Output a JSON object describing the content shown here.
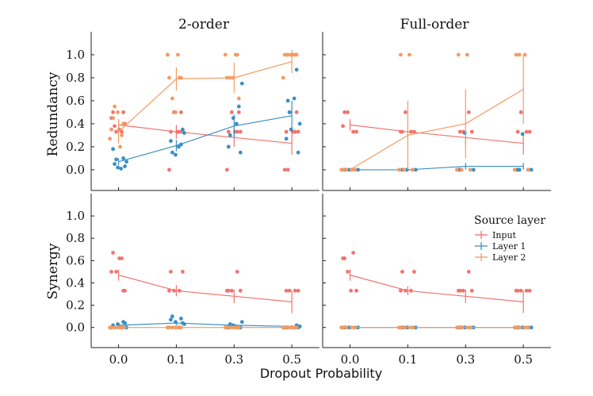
{
  "colors": {
    "input": "#f0746e",
    "layer1": "#3a8fc4",
    "layer2": "#f59a62",
    "axis": "#222222"
  },
  "legend": {
    "title": "Source layer",
    "items": [
      {
        "label": "Input",
        "series": "input"
      },
      {
        "label": "Layer 1",
        "series": "layer1"
      },
      {
        "label": "Layer 2",
        "series": "layer2"
      }
    ]
  },
  "chart_data": {
    "type": "scatter",
    "xlabel": "Dropout Probability",
    "categories": [
      "0.0",
      "0.1",
      "0.3",
      "0.5"
    ],
    "ylim": [
      -0.18,
      1.2
    ],
    "yticks": [
      "0.0",
      "0.2",
      "0.4",
      "0.6",
      "0.8",
      "1.0"
    ],
    "columns": [
      "2-order",
      "Full-order"
    ],
    "rows": [
      "Redundancy",
      "Synergy"
    ],
    "panels": [
      {
        "id": "redundancy-2order",
        "row": "Redundancy",
        "column": "2-order",
        "series": [
          {
            "name": "Input",
            "key": "input",
            "means": [
              0.39,
              0.33,
              0.28,
              0.23
            ],
            "errors": [
              0.05,
              0.06,
              0.08,
              0.1
            ],
            "points": [
              [
                0.5,
                0.33,
                0.33,
                0.4,
                0.45,
                0.35,
                0.5,
                0.38
              ],
              [
                0.33,
                0.33,
                0.5,
                0.33,
                0.0,
                0.33,
                0.5
              ],
              [
                0.33,
                0.33,
                0.5,
                0.33,
                0.0,
                0.33,
                0.5
              ],
              [
                0.33,
                0.33,
                0.5,
                0.33,
                0.0,
                0.33,
                0.5,
                0.0
              ]
            ]
          },
          {
            "name": "Layer 1",
            "key": "layer1",
            "means": [
              0.07,
              0.21,
              0.38,
              0.47
            ],
            "errors": [
              0.03,
              0.05,
              0.1,
              0.13
            ],
            "points": [
              [
                0.05,
                0.1,
                0.02,
                0.07,
                0.18,
                0.01,
                0.03,
                0.09
              ],
              [
                0.15,
                0.22,
                0.13,
                0.32,
                0.25,
                0.2,
                0.35
              ],
              [
                0.3,
                0.55,
                0.45,
                0.75,
                0.2,
                0.4,
                0.15
              ],
              [
                0.6,
                0.87,
                0.35,
                0.4,
                0.27,
                0.62,
                0.15,
                0.5
              ]
            ]
          },
          {
            "name": "Layer 2",
            "key": "layer2",
            "means": [
              0.33,
              0.79,
              0.8,
              0.94
            ],
            "errors": [
              0.1,
              0.1,
              0.13,
              0.1
            ],
            "points": [
              [
                0.35,
                0.2,
                0.55,
                0.4,
                0.27,
                0.5,
                0.3,
                0.45
              ],
              [
                0.8,
                1.0,
                0.62,
                0.8,
                1.0,
                0.5,
                0.8
              ],
              [
                0.8,
                1.0,
                0.8,
                0.62,
                1.0,
                0.8,
                1.0
              ],
              [
                1.0,
                1.0,
                1.0,
                1.0,
                0.8,
                1.0,
                1.0,
                1.0
              ]
            ]
          }
        ]
      },
      {
        "id": "redundancy-full",
        "row": "Redundancy",
        "column": "Full-order",
        "series": [
          {
            "name": "Input",
            "key": "input",
            "means": [
              0.39,
              0.33,
              0.28,
              0.23
            ],
            "errors": [
              0.05,
              0.05,
              0.07,
              0.1
            ],
            "points": [
              [
                0.5,
                0.33,
                0.5,
                0.33,
                0.38
              ],
              [
                0.33,
                0.33,
                0.5,
                0.33,
                0.33
              ],
              [
                0.33,
                0.5,
                0.33,
                0.33,
                0.0
              ],
              [
                0.33,
                0.33,
                0.5,
                0.33,
                0.0
              ]
            ]
          },
          {
            "name": "Layer 1",
            "key": "layer1",
            "means": [
              0.0,
              0.0,
              0.03,
              0.03
            ],
            "errors": [
              0.01,
              0.01,
              0.03,
              0.03
            ],
            "points": [
              [
                0.0,
                0.0,
                0.0,
                0.0,
                0.0
              ],
              [
                0.0,
                0.0,
                0.0,
                0.0,
                0.0
              ],
              [
                0.0,
                0.0,
                0.32,
                0.0,
                0.0
              ],
              [
                0.0,
                0.0,
                0.31,
                0.0,
                0.0
              ]
            ]
          },
          {
            "name": "Layer 2",
            "key": "layer2",
            "means": [
              0.0,
              0.3,
              0.4,
              0.7
            ],
            "errors": [
              0.01,
              0.3,
              0.3,
              0.3
            ],
            "points": [
              [
                0.0,
                0.0,
                0.0,
                0.0,
                0.0
              ],
              [
                1.0,
                1.0,
                0.0,
                0.0,
                0.0
              ],
              [
                1.0,
                1.0,
                0.0,
                0.0,
                0.0
              ],
              [
                1.0,
                1.0,
                1.0,
                0.0,
                0.0
              ]
            ]
          }
        ]
      },
      {
        "id": "synergy-2order",
        "row": "Synergy",
        "column": "2-order",
        "series": [
          {
            "name": "Input",
            "key": "input",
            "means": [
              0.47,
              0.33,
              0.28,
              0.23
            ],
            "errors": [
              0.05,
              0.05,
              0.06,
              0.1
            ],
            "points": [
              [
                0.67,
                0.62,
                0.5,
                0.33,
                0.5,
                0.62,
                0.33
              ],
              [
                0.5,
                0.33,
                0.33,
                0.5,
                0.33
              ],
              [
                0.33,
                0.5,
                0.33,
                0.33,
                0.33
              ],
              [
                0.33,
                0.33,
                0.33,
                0.33,
                0.0
              ]
            ]
          },
          {
            "name": "Layer 1",
            "key": "layer1",
            "means": [
              0.02,
              0.04,
              0.02,
              0.01
            ],
            "errors": [
              0.01,
              0.02,
              0.01,
              0.01
            ],
            "points": [
              [
                0.0,
                0.05,
                0.03,
                0.0,
                0.02,
                0.0,
                0.04
              ],
              [
                0.1,
                0.08,
                0.05,
                0.03,
                0.07,
                0.0,
                0.04
              ],
              [
                0.03,
                0.0,
                0.02,
                0.05,
                0.0,
                0.01,
                0.0
              ],
              [
                0.0,
                0.02,
                0.0,
                0.01,
                0.0,
                0.0,
                0.0
              ]
            ]
          },
          {
            "name": "Layer 2",
            "key": "layer2",
            "means": [
              0.0,
              0.0,
              0.0,
              0.0
            ],
            "errors": [
              0.0,
              0.0,
              0.0,
              0.0
            ],
            "points": [
              [
                0.0,
                0.0,
                0.0,
                0.0,
                0.0,
                0.0,
                0.0
              ],
              [
                0.0,
                0.0,
                0.0,
                0.0,
                0.0,
                0.0,
                0.0
              ],
              [
                0.0,
                0.0,
                0.0,
                0.0,
                0.0,
                0.0,
                0.0
              ],
              [
                0.0,
                0.0,
                0.0,
                0.0,
                0.0,
                0.0,
                0.0
              ]
            ]
          }
        ]
      },
      {
        "id": "synergy-full",
        "row": "Synergy",
        "column": "Full-order",
        "series": [
          {
            "name": "Input",
            "key": "input",
            "means": [
              0.47,
              0.33,
              0.28,
              0.23
            ],
            "errors": [
              0.05,
              0.04,
              0.06,
              0.1
            ],
            "points": [
              [
                0.62,
                0.67,
                0.5,
                0.33,
                0.62,
                0.33
              ],
              [
                0.5,
                0.33,
                0.33,
                0.5,
                0.33
              ],
              [
                0.33,
                0.5,
                0.33,
                0.33,
                0.33
              ],
              [
                0.33,
                0.33,
                0.33,
                0.33,
                0.33
              ]
            ]
          },
          {
            "name": "Layer 1",
            "key": "layer1",
            "means": [
              0.0,
              0.0,
              0.0,
              0.0
            ],
            "errors": [
              0.0,
              0.0,
              0.0,
              0.0
            ],
            "points": [
              [
                0.0,
                0.0,
                0.0,
                0.0,
                0.0
              ],
              [
                0.0,
                0.0,
                0.0,
                0.0,
                0.0
              ],
              [
                0.0,
                0.0,
                0.0,
                0.0,
                0.0
              ],
              [
                0.0,
                0.0,
                0.0,
                0.0,
                0.0
              ]
            ]
          },
          {
            "name": "Layer 2",
            "key": "layer2",
            "means": [
              0.0,
              0.0,
              0.0,
              0.0
            ],
            "errors": [
              0.0,
              0.0,
              0.0,
              0.0
            ],
            "points": [
              [
                0.0,
                0.0,
                0.0,
                0.0,
                0.0
              ],
              [
                0.0,
                0.0,
                0.0,
                0.0,
                0.0
              ],
              [
                0.0,
                0.0,
                0.0,
                0.0,
                0.0
              ],
              [
                0.0,
                0.0,
                0.0,
                0.0,
                0.0
              ]
            ]
          }
        ]
      }
    ]
  }
}
